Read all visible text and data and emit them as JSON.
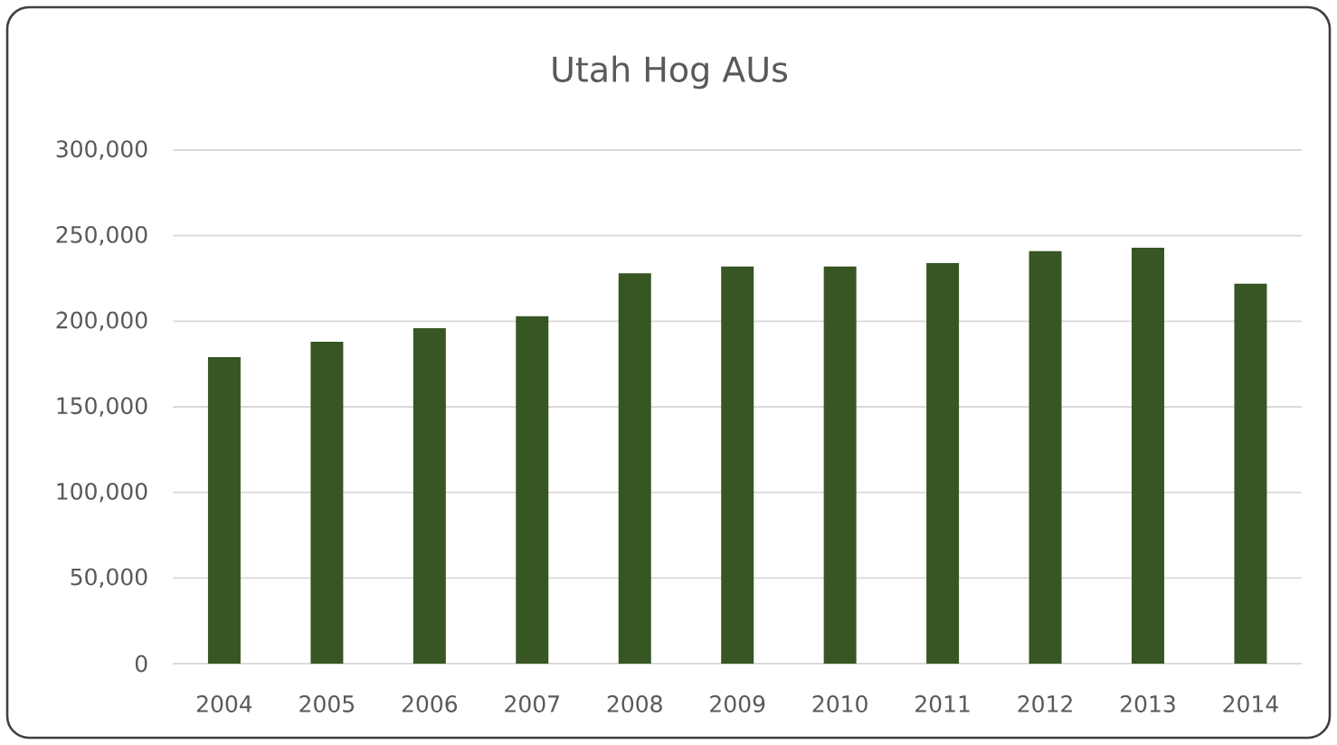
{
  "chart_data": {
    "type": "bar",
    "title": "Utah Hog AUs",
    "categories": [
      "2004",
      "2005",
      "2006",
      "2007",
      "2008",
      "2009",
      "2010",
      "2011",
      "2012",
      "2013",
      "2014"
    ],
    "values": [
      179000,
      188000,
      196000,
      203000,
      228000,
      232000,
      232000,
      234000,
      241000,
      243000,
      222000
    ],
    "color": "#375623",
    "ylim": [
      0,
      300000
    ],
    "yticks": [
      0,
      {
        "value": 50000,
        "label": "50,000"
      },
      {
        "value": 100000,
        "label": "100,000"
      },
      {
        "value": 150000,
        "label": "150,000"
      },
      {
        "value": 200000,
        "label": "200,000"
      },
      {
        "value": 250000,
        "label": "250,000"
      },
      {
        "value": 300000,
        "label": "300,000"
      }
    ],
    "grid": "y"
  }
}
